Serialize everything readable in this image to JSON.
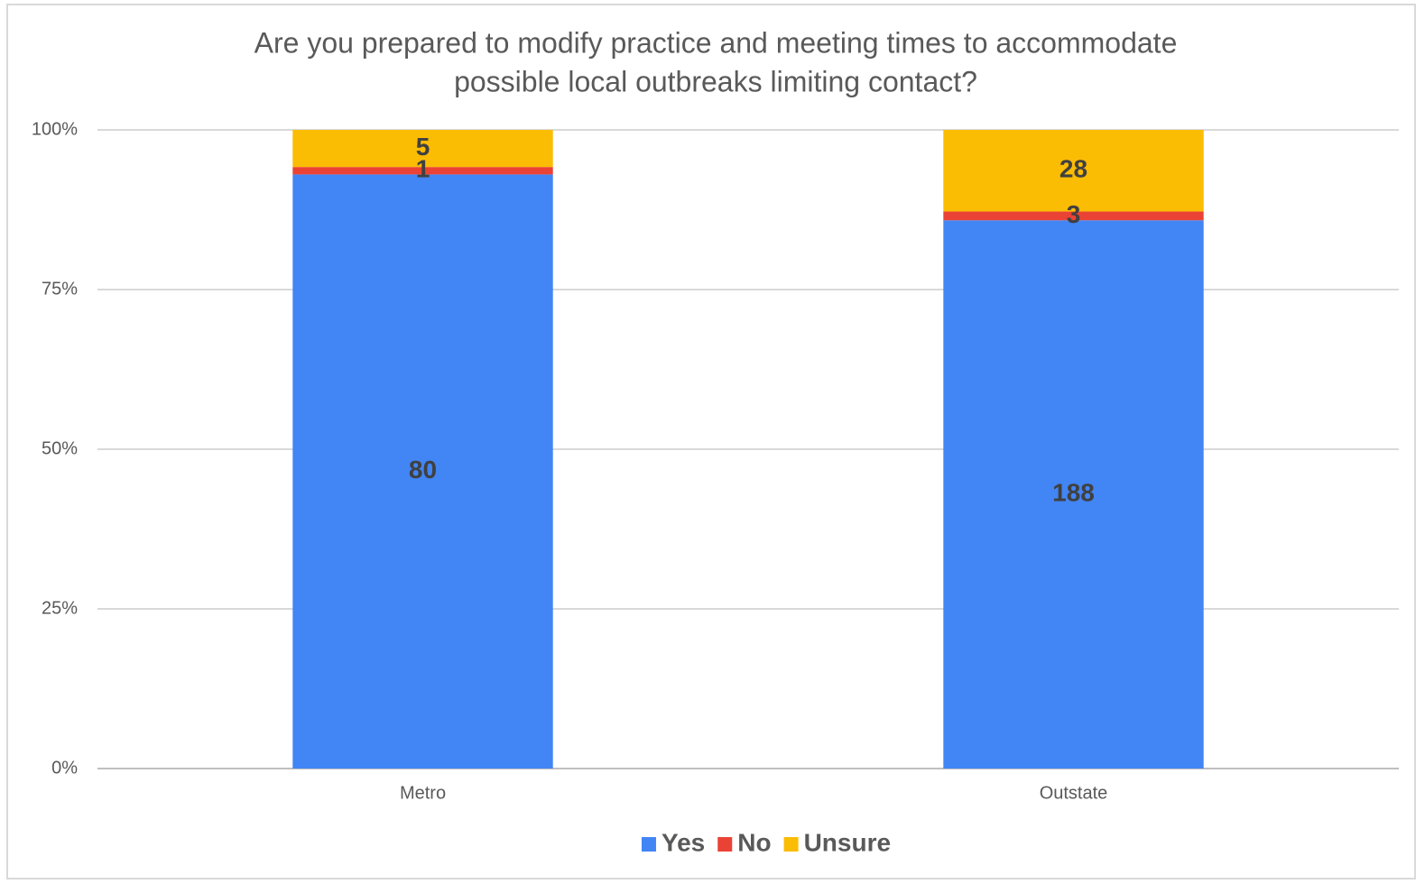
{
  "chart_data": {
    "type": "bar",
    "stacking": "percent",
    "title": [
      "Are you prepared to modify practice and meeting times to accommodate",
      "possible local outbreaks limiting contact?"
    ],
    "categories": [
      "Metro",
      "Outstate"
    ],
    "series": [
      {
        "name": "Yes",
        "color": "#4285f4",
        "values": [
          80,
          188
        ]
      },
      {
        "name": "No",
        "color": "#ea4335",
        "values": [
          1,
          3
        ]
      },
      {
        "name": "Unsure",
        "color": "#fbbc04",
        "values": [
          5,
          28
        ]
      }
    ],
    "ylim": [
      0,
      100
    ],
    "yticks": [
      {
        "value": 0,
        "label": "0%"
      },
      {
        "value": 25,
        "label": "25%"
      },
      {
        "value": 50,
        "label": "50%"
      },
      {
        "value": 75,
        "label": "75%"
      },
      {
        "value": 100,
        "label": "100%"
      }
    ],
    "grid": true,
    "legend": "bottom"
  }
}
